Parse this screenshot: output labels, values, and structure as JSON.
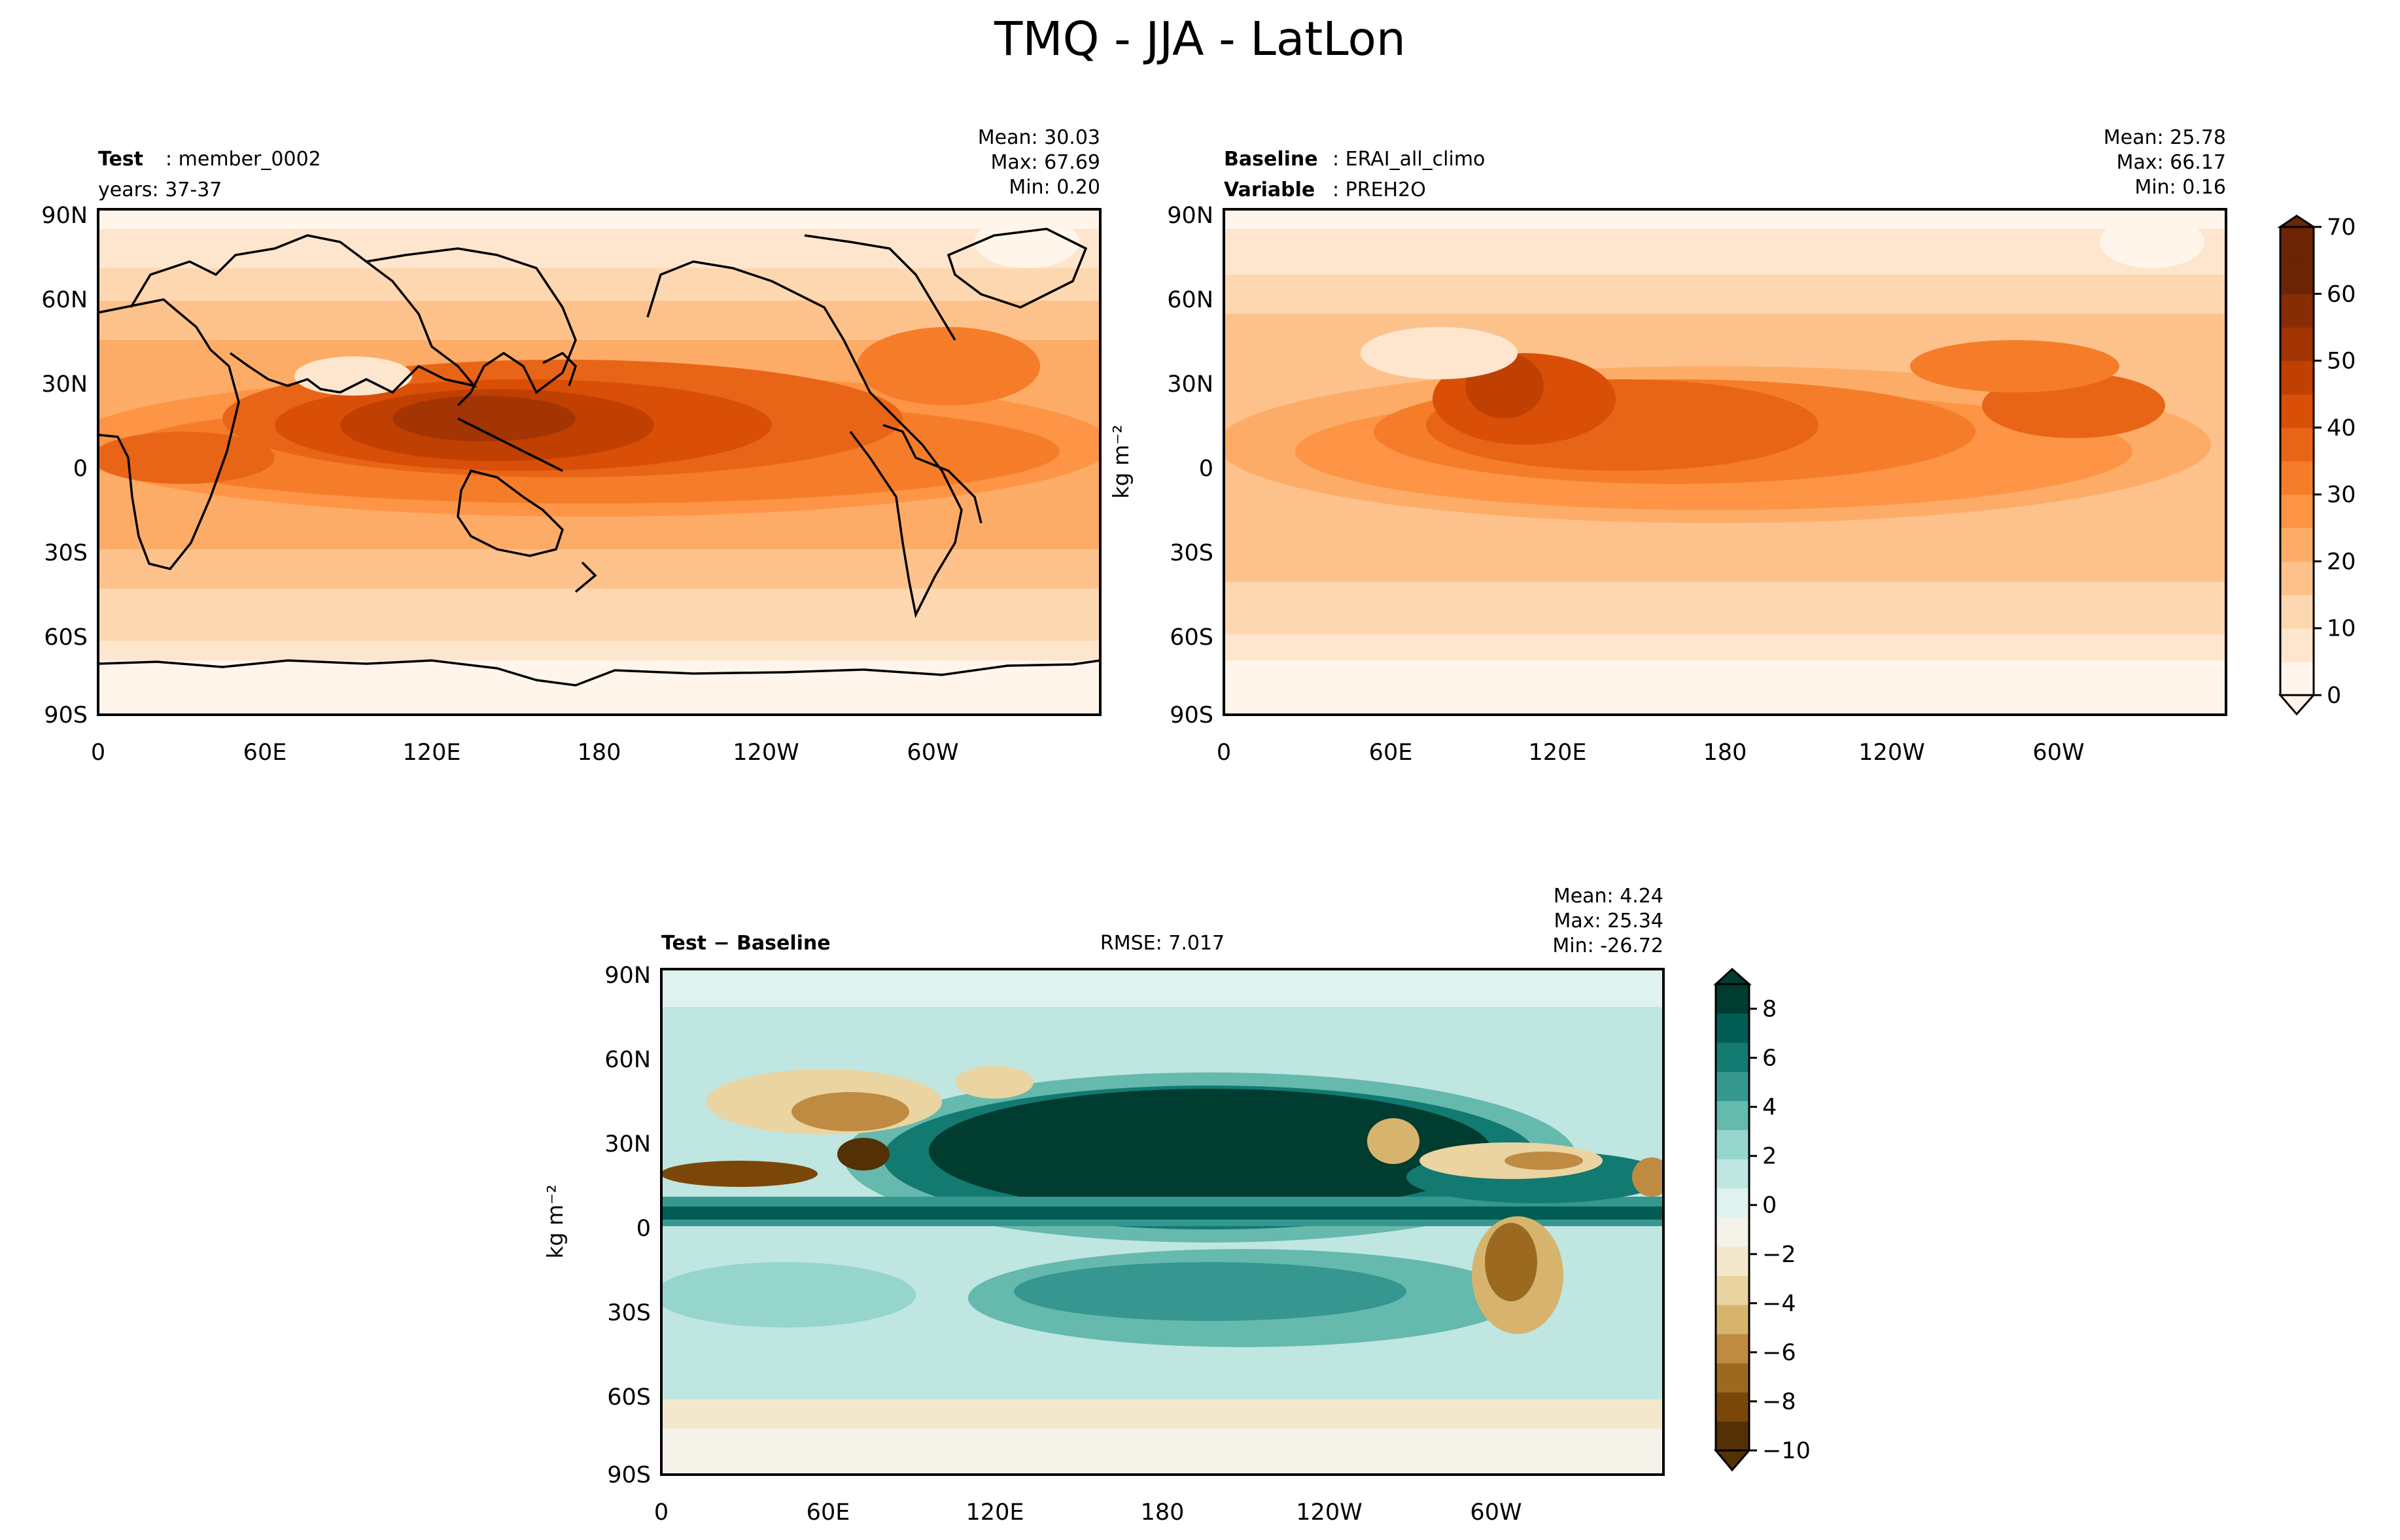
{
  "figure": {
    "title": "TMQ - JJA - LatLon"
  },
  "colors": {
    "orange_scale": [
      "#fff5eb",
      "#fee6ce",
      "#fdd7b0",
      "#fdc28c",
      "#fdac67",
      "#fd9446",
      "#f57d2a",
      "#e86517",
      "#d94f08",
      "#c04001",
      "#a33403",
      "#862d04",
      "#6b2505"
    ],
    "diff_scale": [
      "#543005",
      "#7a4709",
      "#9b6a20",
      "#bf8a41",
      "#d7b46e",
      "#e9d4a2",
      "#f4e8cc",
      "#f5f2ea",
      "#e0f2ef",
      "#bfe6e0",
      "#95d5cb",
      "#65b9ad",
      "#35978f",
      "#127a71",
      "#015d54",
      "#003c30"
    ],
    "coastline": "#000000",
    "frame": "#000000"
  },
  "chart_data": [
    {
      "id": "test",
      "type": "heatmap",
      "map_type": "contourf_latlon",
      "panel_label_bold": "Test",
      "panel_label_value": "member_0002",
      "panel_label_line2": "years: 37-37",
      "stats": [
        "Mean: 30.03",
        "Max: 67.69",
        "Min:  0.20"
      ],
      "lat_ticks": [
        "90N",
        "60N",
        "30N",
        "0",
        "30S",
        "60S",
        "90S"
      ],
      "lon_ticks": [
        "0",
        "60E",
        "120E",
        "180",
        "120W",
        "60W"
      ],
      "lat_range": [
        -90,
        90
      ],
      "lon_range": [
        0,
        360
      ],
      "field_summary": {
        "itcz_peak": 62,
        "warm_pool_peak": 67.69,
        "polar_min": 0.2,
        "mean": 30.03
      }
    },
    {
      "id": "baseline",
      "type": "heatmap",
      "map_type": "contourf_latlon",
      "panel_label_bold": "Baseline",
      "panel_label_value": "ERAI_all_climo",
      "panel_label_bold2": "Variable",
      "panel_label_value2": "PREH2O",
      "stats": [
        "Mean: 25.78",
        "Max: 66.17",
        "Min:  0.16"
      ],
      "ylabel": "kg m⁻²",
      "lat_ticks": [
        "90N",
        "60N",
        "30N",
        "0",
        "30S",
        "60S",
        "90S"
      ],
      "lon_ticks": [
        "0",
        "60E",
        "120E",
        "180",
        "120W",
        "60W"
      ],
      "lat_range": [
        -90,
        90
      ],
      "lon_range": [
        0,
        360
      ],
      "colorbar": {
        "ticks": [
          "70",
          "60",
          "50",
          "40",
          "30",
          "20",
          "10",
          "0"
        ],
        "range": [
          0,
          70
        ],
        "step": 5,
        "extend": "both"
      }
    },
    {
      "id": "difference",
      "type": "heatmap",
      "map_type": "contourf_latlon",
      "panel_label_bold": "Test − Baseline",
      "rmse": "RMSE: 7.017",
      "stats": [
        "Mean:  4.24",
        "Max: 25.34",
        "Min: -26.72"
      ],
      "ylabel": "kg m⁻²",
      "lat_ticks": [
        "90N",
        "60N",
        "30N",
        "0",
        "30S",
        "60S",
        "90S"
      ],
      "lon_ticks": [
        "0",
        "60E",
        "120E",
        "180",
        "120W",
        "60W"
      ],
      "lat_range": [
        -90,
        90
      ],
      "lon_range": [
        0,
        360
      ],
      "colorbar": {
        "ticks": [
          "8",
          "6",
          "4",
          "2",
          "0",
          "−2",
          "−4",
          "−6",
          "−8",
          "−10"
        ],
        "range": [
          -10,
          9
        ],
        "extend": "both"
      }
    }
  ]
}
